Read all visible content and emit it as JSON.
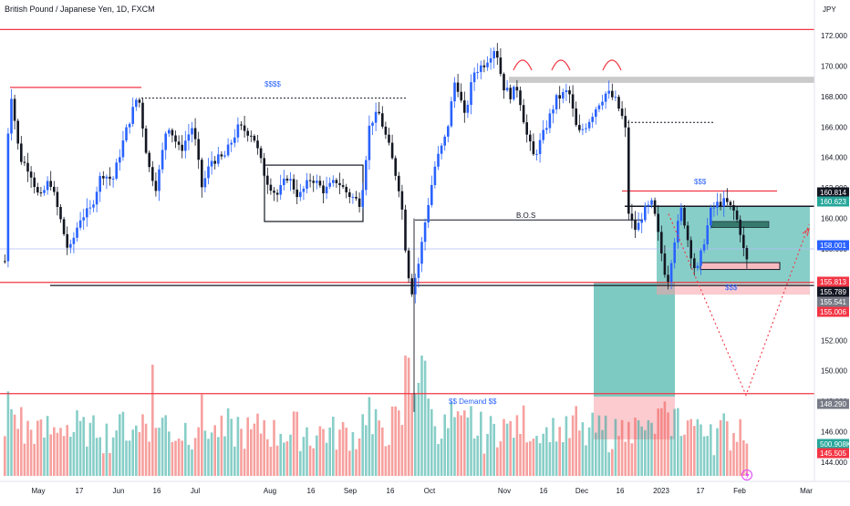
{
  "chart_data": {
    "type": "candlestick",
    "title": "British Pound / Japanese Yen, 1D, FXCM",
    "currency": "JPY",
    "ylim": [
      143.4,
      173.2
    ],
    "y_ticks": [
      "172.000",
      "170.000",
      "168.000",
      "166.000",
      "164.000",
      "162.000",
      "160.000",
      "158.000",
      "156.000",
      "154.000",
      "152.000",
      "150.000",
      "148.000",
      "146.000",
      "144.000"
    ],
    "x_ticks": [
      "May",
      "17",
      "Jun",
      "16",
      "Jul",
      "Aug",
      "16",
      "Sep",
      "16",
      "Oct",
      "Nov",
      "16",
      "Dec",
      "16",
      "2023",
      "17",
      "Feb",
      "Mar"
    ],
    "price_badges": [
      {
        "value": "160.814",
        "bg": "#131722",
        "fg": "#ffffff"
      },
      {
        "value": "160.623",
        "bg": "#26a69a",
        "fg": "#ffffff"
      },
      {
        "value": "158.001",
        "bg": "#2962ff",
        "fg": "#ffffff"
      },
      {
        "value": "155.813",
        "bg": "#f23645",
        "fg": "#ffffff"
      },
      {
        "value": "155.789",
        "bg": "#131722",
        "fg": "#ffffff"
      },
      {
        "value": "155.541",
        "bg": "#787b86",
        "fg": "#ffffff"
      },
      {
        "value": "155.006",
        "bg": "#f23645",
        "fg": "#ffffff"
      },
      {
        "value": "148.290",
        "bg": "#787b86",
        "fg": "#ffffff"
      },
      {
        "value": "500.908K",
        "bg": "#26a69a",
        "fg": "#ffffff"
      },
      {
        "value": "145.505",
        "bg": "#f23645",
        "fg": "#ffffff"
      }
    ],
    "annotations": {
      "top_liquidity": "$$$$",
      "bos": "B.O.S",
      "mid_liquidity": "$$$",
      "low_liquidity": "$$$",
      "demand": "$$ Demand $$"
    },
    "levels": {
      "top_red": 172.4,
      "may_high": 168.6,
      "dotted_high": 167.9,
      "dec_dotted": 166.3,
      "jan_red": 161.8,
      "jan_black": 160.8,
      "bos": 159.9,
      "blue_thin": 158.0,
      "red_support": 155.8,
      "black_support": 155.6,
      "demand": 148.5,
      "supply_zone": [
        168.9,
        169.3
      ]
    },
    "volume_max_label": "500.908K",
    "colors": {
      "up": "#2962ff",
      "down": "#131722",
      "red_line": "#f23645",
      "teal_zone": "#26a69a",
      "pink_zone": "#f7a1a8",
      "vol_up": "#26a69a",
      "vol_down": "#ef5350"
    }
  }
}
